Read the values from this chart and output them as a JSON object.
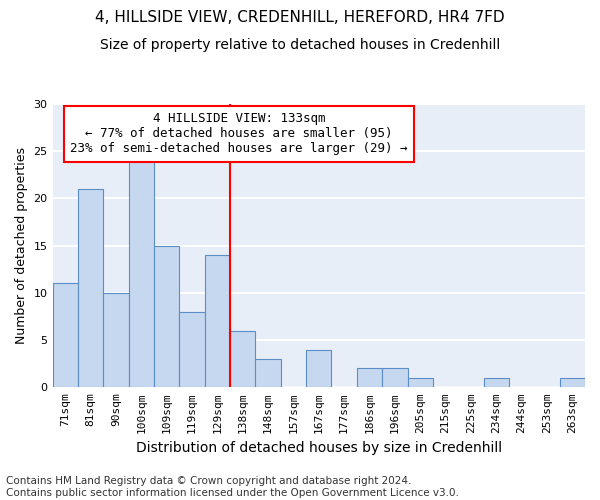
{
  "title": "4, HILLSIDE VIEW, CREDENHILL, HEREFORD, HR4 7FD",
  "subtitle": "Size of property relative to detached houses in Credenhill",
  "xlabel": "Distribution of detached houses by size in Credenhill",
  "ylabel": "Number of detached properties",
  "categories": [
    "71sqm",
    "81sqm",
    "90sqm",
    "100sqm",
    "109sqm",
    "119sqm",
    "129sqm",
    "138sqm",
    "148sqm",
    "157sqm",
    "167sqm",
    "177sqm",
    "186sqm",
    "196sqm",
    "205sqm",
    "215sqm",
    "225sqm",
    "234sqm",
    "244sqm",
    "253sqm",
    "263sqm"
  ],
  "values": [
    11,
    21,
    10,
    24,
    15,
    8,
    14,
    6,
    3,
    0,
    4,
    0,
    2,
    2,
    1,
    0,
    0,
    1,
    0,
    0,
    1
  ],
  "bar_color": "#c5d8f0",
  "bar_edge_color": "#5b8dc8",
  "vline_x_index": 6.5,
  "vline_color": "red",
  "annotation_text": "4 HILLSIDE VIEW: 133sqm\n← 77% of detached houses are smaller (95)\n23% of semi-detached houses are larger (29) →",
  "annotation_box_color": "white",
  "annotation_box_edge_color": "red",
  "ylim": [
    0,
    30
  ],
  "yticks": [
    0,
    5,
    10,
    15,
    20,
    25,
    30
  ],
  "footnote": "Contains HM Land Registry data © Crown copyright and database right 2024.\nContains public sector information licensed under the Open Government Licence v3.0.",
  "bg_color": "#e8eef8",
  "grid_color": "white",
  "title_fontsize": 11,
  "subtitle_fontsize": 10,
  "xlabel_fontsize": 10,
  "ylabel_fontsize": 9,
  "tick_fontsize": 8,
  "annotation_fontsize": 9,
  "footnote_fontsize": 7.5
}
